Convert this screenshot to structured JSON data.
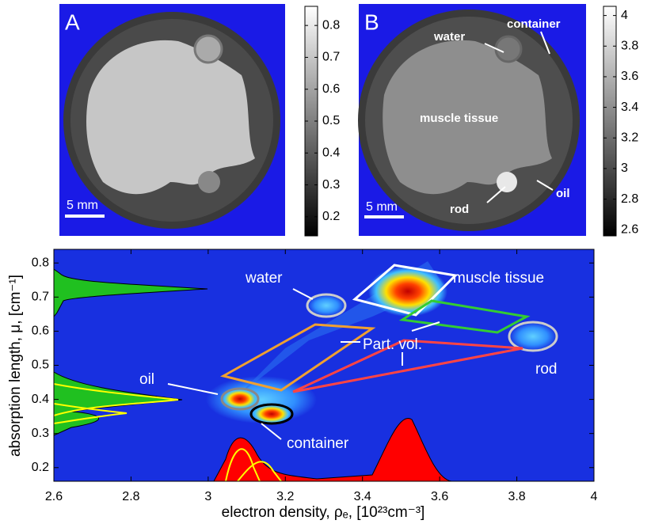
{
  "panels": [
    {
      "label": "A",
      "scale_bar": "5 mm",
      "colorbar": {
        "lim": [
          0.14,
          0.86
        ],
        "ticks": [
          0.2,
          0.3,
          0.4,
          0.5,
          0.6,
          0.7,
          0.8
        ]
      }
    },
    {
      "label": "B",
      "scale_bar": "5 mm",
      "colorbar": {
        "lim": [
          2.56,
          4.06
        ],
        "ticks": [
          2.6,
          2.8,
          3,
          3.2,
          3.4,
          3.6,
          3.8,
          4
        ]
      },
      "annotations": [
        "water",
        "container",
        "muscle tissue",
        "oil",
        "rod"
      ]
    }
  ],
  "plot": {
    "xlabel": "electron density, ρₑ, [10²³cm⁻³]",
    "ylabel": "absorption length, μ, [cm⁻¹]",
    "xlim": [
      2.6,
      4
    ],
    "ylim": [
      0.16,
      0.84
    ],
    "xticks": [
      2.6,
      2.8,
      3,
      3.2,
      3.4,
      3.6,
      3.8,
      4
    ],
    "yticks": [
      0.2,
      0.3,
      0.4,
      0.5,
      0.6,
      0.7,
      0.8
    ],
    "annotations": [
      "water",
      "muscle tissue",
      "Part. vol.",
      "rod",
      "oil",
      "container"
    ]
  }
}
